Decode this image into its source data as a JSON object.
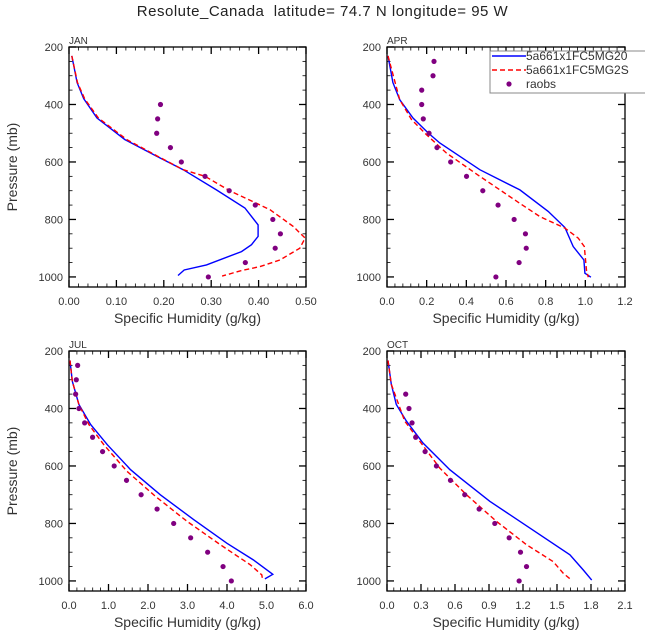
{
  "title": "Resolute_Canada  latitude= 74.7 N longitude= 95 W",
  "colors": {
    "model1": "#0000ff",
    "model2": "#ff0000",
    "raobs": "#800080",
    "axis": "#000000"
  },
  "chart_data": {
    "type": "line",
    "ylabel": "Pressure (mb)",
    "xlabel": "Specific Humidity (g/kg)",
    "ylim": [
      200,
      1035
    ],
    "y_reversed": true,
    "yticks": [
      200,
      400,
      600,
      800,
      1000
    ],
    "legend": {
      "placement": "top-right of APR panel",
      "entries": [
        "5a661x1FC5MG20",
        "5a661x1FC5MG2S",
        "raobs"
      ]
    },
    "panels": [
      {
        "month": "JAN",
        "xlim": [
          0,
          0.5
        ],
        "xticks": [
          "0.00",
          "0.10",
          "0.20",
          "0.30",
          "0.40",
          "0.50"
        ],
        "series": [
          {
            "name": "5a661x1FC5MG20",
            "style": "solid",
            "x": [
              0.006,
              0.017,
              0.031,
              0.059,
              0.118,
              0.185,
              0.241,
              0.311,
              0.371,
              0.399,
              0.399,
              0.385,
              0.364,
              0.29,
              0.243,
              0.23
            ],
            "p": [
              231,
              324,
              380,
              447,
              522,
              580,
              627,
              697,
              760,
              819,
              859,
              888,
              912,
              958,
              976,
              995
            ]
          },
          {
            "name": "5a661x1FC5MG2S",
            "style": "dashed",
            "x": [
              0.006,
              0.018,
              0.033,
              0.062,
              0.122,
              0.187,
              0.241,
              0.287,
              0.339,
              0.424,
              0.473,
              0.498,
              0.487,
              0.445,
              0.403,
              0.361,
              0.323
            ],
            "p": [
              231,
              324,
              380,
              447,
              522,
              580,
              627,
              650,
              700,
              766,
              824,
              865,
              900,
              941,
              964,
              979,
              997
            ]
          },
          {
            "name": "raobs",
            "style": "dots",
            "x": [
              0.193,
              0.187,
              0.185,
              0.214,
              0.237,
              0.287,
              0.338,
              0.393,
              0.43,
              0.446,
              0.435,
              0.372,
              0.294
            ],
            "p": [
              400,
              450,
              500,
              550,
              600,
              650,
              700,
              750,
              800,
              850,
              900,
              950,
              1000
            ]
          }
        ]
      },
      {
        "month": "APR",
        "xlim": [
          0,
          1.2
        ],
        "xticks": [
          "0.0",
          "0.2",
          "0.4",
          "0.6",
          "0.8",
          "1.0",
          "1.2"
        ],
        "series": [
          {
            "name": "5a661x1FC5MG20",
            "style": "solid",
            "x": [
              0.005,
              0.03,
              0.064,
              0.131,
              0.207,
              0.266,
              0.468,
              0.67,
              0.813,
              0.897,
              0.939,
              0.993,
              0.998,
              1.028
            ],
            "p": [
              231,
              324,
              383,
              447,
              499,
              534,
              627,
              697,
              772,
              828,
              894,
              941,
              987,
              1001
            ]
          },
          {
            "name": "5a661x1FC5MG2S",
            "style": "dashed",
            "x": [
              0.005,
              0.064,
              0.123,
              0.199,
              0.3,
              0.468,
              0.67,
              0.771,
              0.897,
              0.964,
              0.995,
              1.006,
              1.015
            ],
            "p": [
              231,
              383,
              452,
              505,
              569,
              650,
              744,
              790,
              830,
              865,
              894,
              977,
              1001
            ]
          },
          {
            "name": "raobs",
            "style": "dots",
            "x": [
              0.237,
              0.232,
              0.175,
              0.175,
              0.183,
              0.212,
              0.252,
              0.321,
              0.401,
              0.483,
              0.56,
              0.641,
              0.698,
              0.702,
              0.666,
              0.549
            ],
            "p": [
              250,
              300,
              350,
              400,
              450,
              500,
              550,
              600,
              650,
              700,
              750,
              800,
              850,
              900,
              950,
              1000
            ]
          }
        ]
      },
      {
        "month": "JUL",
        "xlim": [
          0,
          6.0
        ],
        "xticks": [
          "0.0",
          "1.0",
          "2.0",
          "3.0",
          "4.0",
          "5.0",
          "6.0"
        ],
        "series": [
          {
            "name": "5a661x1FC5MG20",
            "style": "solid",
            "x": [
              0.025,
              0.084,
              0.25,
              0.55,
              0.97,
              1.56,
              2.31,
              3.16,
              4.0,
              4.67,
              5.16,
              4.96
            ],
            "p": [
              233,
              305,
              386,
              456,
              526,
              613,
              700,
              787,
              869,
              927,
              977,
              993
            ]
          },
          {
            "name": "5a661x1FC5MG2S",
            "style": "dashed",
            "x": [
              0.025,
              0.084,
              0.25,
              0.505,
              0.88,
              1.47,
              2.19,
              2.99,
              3.83,
              4.59,
              4.88,
              4.9
            ],
            "p": [
              233,
              305,
              386,
              456,
              526,
              619,
              706,
              793,
              874,
              944,
              979,
              997
            ]
          },
          {
            "name": "raobs",
            "style": "dots",
            "x": [
              0.219,
              0.185,
              0.168,
              0.252,
              0.396,
              0.597,
              0.85,
              1.144,
              1.456,
              1.826,
              2.23,
              2.65,
              3.08,
              3.51,
              3.9,
              4.11
            ],
            "p": [
              250,
              300,
              350,
              400,
              450,
              500,
              550,
              600,
              650,
              700,
              750,
              800,
              850,
              900,
              950,
              1000
            ]
          }
        ]
      },
      {
        "month": "OCT",
        "xlim": [
          0,
          2.1
        ],
        "xticks": [
          "0.0",
          "0.3",
          "0.6",
          "0.9",
          "1.2",
          "1.5",
          "1.8",
          "2.1"
        ],
        "series": [
          {
            "name": "5a661x1FC5MG20",
            "style": "solid",
            "x": [
              0.009,
              0.038,
              0.082,
              0.171,
              0.318,
              0.554,
              0.907,
              1.261,
              1.614,
              1.732,
              1.806
            ],
            "p": [
              233,
              316,
              386,
              444,
              520,
              613,
              723,
              816,
              909,
              962,
              997
            ]
          },
          {
            "name": "5a661x1FC5MG2S",
            "style": "dashed",
            "x": [
              0.009,
              0.038,
              0.156,
              0.289,
              0.465,
              0.701,
              0.966,
              1.231,
              1.467,
              1.555,
              1.629
            ],
            "p": [
              233,
              316,
              444,
              514,
              607,
              700,
              793,
              874,
              933,
              973,
              997
            ]
          },
          {
            "name": "raobs",
            "style": "dots",
            "x": [
              0.165,
              0.194,
              0.221,
              0.253,
              0.336,
              0.436,
              0.56,
              0.686,
              0.813,
              0.951,
              1.078,
              1.178,
              1.231,
              1.166
            ],
            "p": [
              350,
              400,
              450,
              500,
              550,
              600,
              650,
              700,
              750,
              800,
              850,
              900,
              950,
              1000
            ]
          }
        ]
      }
    ]
  }
}
